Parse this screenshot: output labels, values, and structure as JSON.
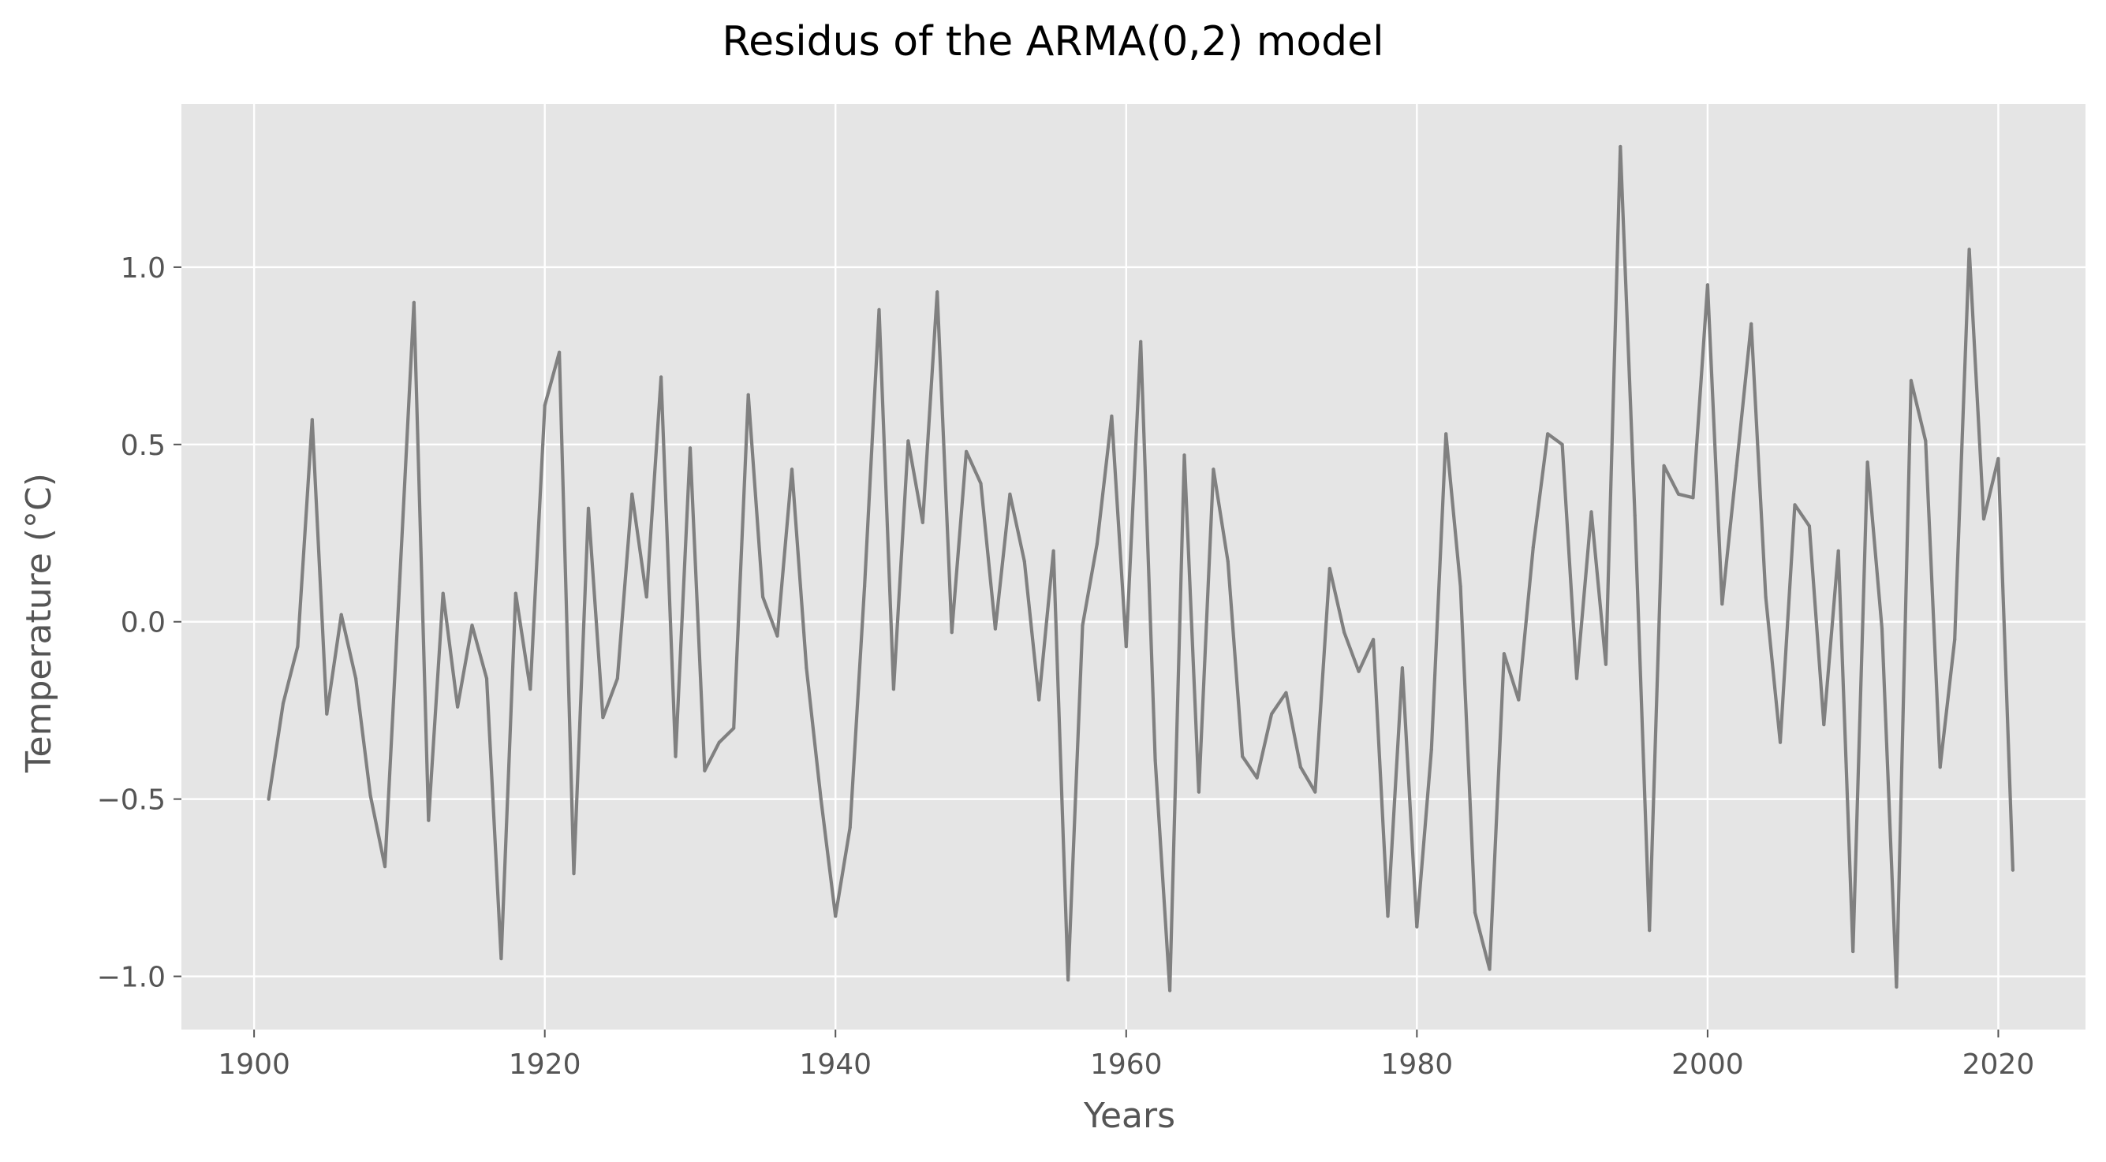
{
  "chart_data": {
    "type": "line",
    "title": "Residus of the ARMA(0,2) model",
    "xlabel": "Years",
    "ylabel": "Temperature (°C)",
    "xlim": [
      1895,
      2026
    ],
    "ylim": [
      -1.15,
      1.46
    ],
    "xticks": [
      1900,
      1920,
      1940,
      1960,
      1980,
      2000,
      2020
    ],
    "yticks": [
      -1.0,
      -0.5,
      0.0,
      0.5,
      1.0
    ],
    "ytick_labels": [
      "−1.0",
      "−0.5",
      "0.0",
      "0.5",
      "1.0"
    ],
    "grid": true,
    "style": "ggplot",
    "colors": {
      "plot_background": "#e5e5e5",
      "grid": "#ffffff",
      "line": "#808080",
      "tick_label": "#555555",
      "axis_label": "#555555",
      "title": "#000000"
    },
    "series": [
      {
        "x": [
          1901,
          1902,
          1903,
          1904,
          1905,
          1906,
          1907,
          1908,
          1909,
          1910,
          1911,
          1912,
          1913,
          1914,
          1915,
          1916,
          1917,
          1918,
          1919,
          1920,
          1921,
          1922,
          1923,
          1924,
          1925,
          1926,
          1927,
          1928,
          1929,
          1930,
          1931,
          1932,
          1933,
          1934,
          1935,
          1936,
          1937,
          1938,
          1939,
          1940,
          1941,
          1942,
          1943,
          1944,
          1945,
          1946,
          1947,
          1948,
          1949,
          1950,
          1951,
          1952,
          1953,
          1954,
          1955,
          1956,
          1957,
          1958,
          1959,
          1960,
          1961,
          1962,
          1963,
          1964,
          1965,
          1966,
          1967,
          1968,
          1969,
          1970,
          1971,
          1972,
          1973,
          1974,
          1975,
          1976,
          1977,
          1978,
          1979,
          1980,
          1981,
          1982,
          1983,
          1984,
          1985,
          1986,
          1987,
          1988,
          1989,
          1990,
          1991,
          1992,
          1993,
          1994,
          1995,
          1996,
          1997,
          1998,
          1999,
          2000,
          2001,
          2002,
          2003,
          2004,
          2005,
          2006,
          2007,
          2008,
          2009,
          2010,
          2011,
          2012,
          2013,
          2014,
          2015,
          2016,
          2017,
          2018,
          2019,
          2020,
          2021
        ],
        "values": [
          -0.5,
          -0.23,
          -0.07,
          0.57,
          -0.26,
          0.02,
          -0.16,
          -0.49,
          -0.69,
          0.1,
          0.9,
          -0.56,
          0.08,
          -0.24,
          -0.01,
          -0.16,
          -0.95,
          0.08,
          -0.19,
          0.61,
          0.76,
          -0.71,
          0.32,
          -0.27,
          -0.16,
          0.36,
          0.07,
          0.69,
          -0.38,
          0.49,
          -0.42,
          -0.34,
          -0.3,
          0.64,
          0.07,
          -0.04,
          0.43,
          -0.13,
          -0.5,
          -0.83,
          -0.58,
          0.1,
          0.88,
          -0.19,
          0.51,
          0.28,
          0.93,
          -0.03,
          0.48,
          0.39,
          -0.02,
          0.36,
          0.17,
          -0.22,
          0.2,
          -1.01,
          -0.01,
          0.22,
          0.58,
          -0.07,
          0.79,
          -0.39,
          -1.04,
          0.47,
          -0.48,
          0.43,
          0.17,
          -0.38,
          -0.44,
          -0.26,
          -0.2,
          -0.41,
          -0.48,
          0.15,
          -0.03,
          -0.14,
          -0.05,
          -0.83,
          -0.13,
          -0.86,
          -0.36,
          0.53,
          0.1,
          -0.82,
          -0.98,
          -0.09,
          -0.22,
          0.21,
          0.53,
          0.5,
          -0.16,
          0.31,
          -0.12,
          1.34,
          0.3,
          -0.87,
          0.44,
          0.36,
          0.35,
          0.95,
          0.05,
          0.44,
          0.84,
          0.07,
          -0.34,
          0.33,
          0.27,
          -0.29,
          0.2,
          -0.93,
          0.45,
          -0.02,
          -1.03,
          0.68,
          0.51,
          -0.41,
          -0.05,
          1.05,
          0.29,
          0.46,
          -0.7
        ]
      }
    ]
  }
}
